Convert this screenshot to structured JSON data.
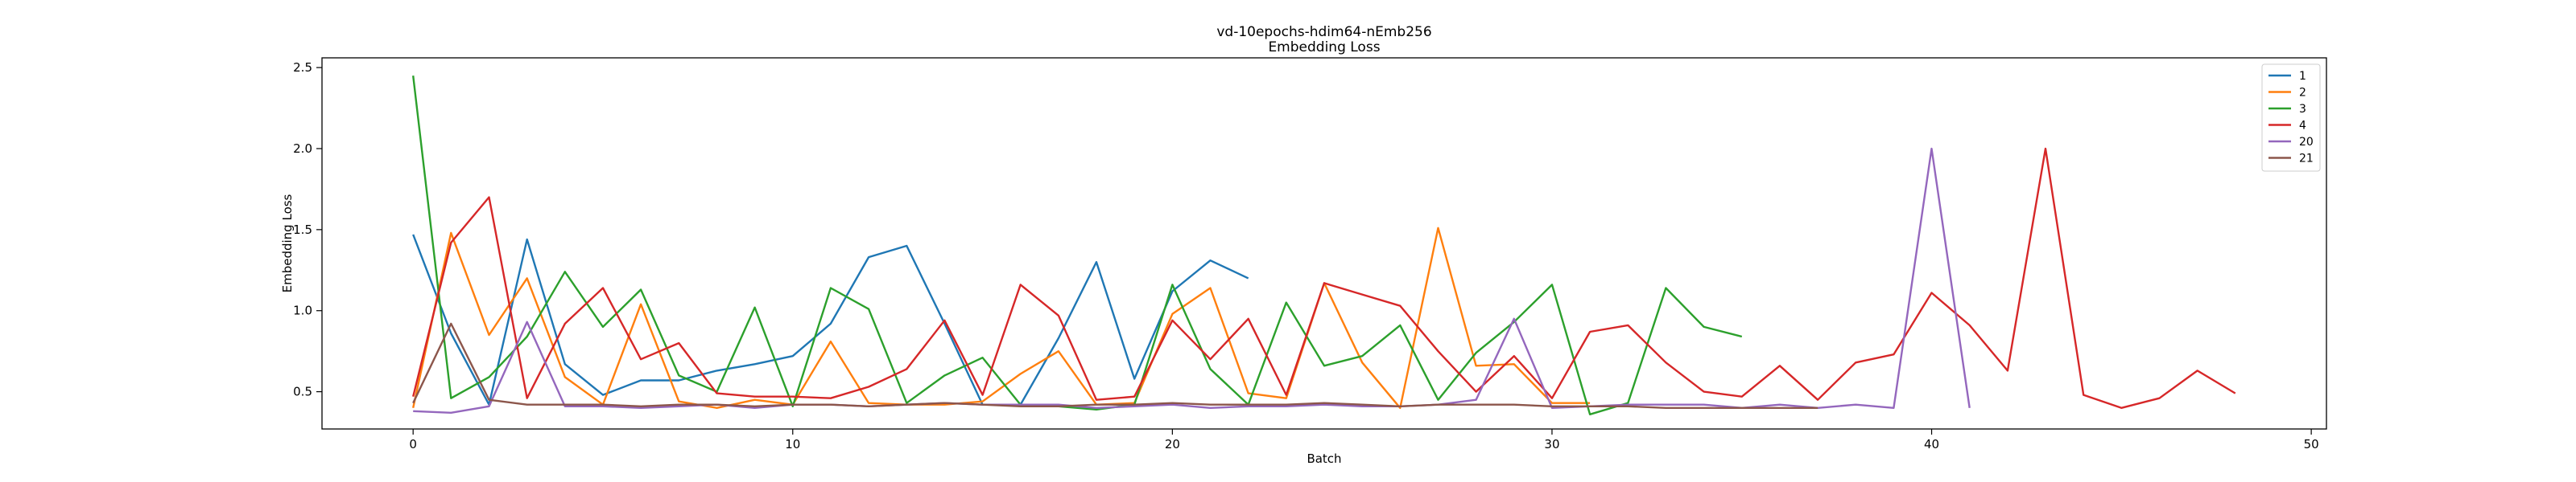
{
  "chart_data": {
    "type": "line",
    "title": "vd-10epochs-hdim64-nEmb256",
    "subtitle": "Embedding Loss",
    "xlabel": "Batch",
    "ylabel": "Embedding Loss",
    "xlim": [
      -2.4,
      50.4
    ],
    "ylim": [
      0.27,
      2.56
    ],
    "xticks": [
      0,
      10,
      20,
      30,
      40,
      50
    ],
    "yticks": [
      0.5,
      1.0,
      1.5,
      2.0,
      2.5
    ],
    "grid": false,
    "legend_position": "top-right",
    "series": [
      {
        "name": "1",
        "color": "#1f77b4",
        "x": [
          0,
          1,
          2,
          3,
          4,
          5,
          6,
          7,
          8,
          9,
          10,
          11,
          12,
          13,
          14,
          15,
          16,
          17,
          18,
          19,
          20,
          21,
          22
        ],
        "y": [
          1.47,
          0.86,
          0.42,
          1.44,
          0.67,
          0.48,
          0.57,
          0.57,
          0.63,
          0.67,
          0.72,
          0.92,
          1.33,
          1.4,
          0.92,
          0.42,
          0.42,
          0.83,
          1.3,
          0.58,
          1.12,
          1.31,
          1.2
        ]
      },
      {
        "name": "2",
        "color": "#ff7f0e",
        "x": [
          0,
          1,
          2,
          3,
          4,
          5,
          6,
          7,
          8,
          9,
          10,
          11,
          12,
          13,
          14,
          15,
          16,
          17,
          18,
          19,
          20,
          21,
          22,
          23,
          24,
          25,
          26,
          27,
          28,
          29,
          30,
          31
        ],
        "y": [
          0.4,
          1.48,
          0.85,
          1.2,
          0.59,
          0.42,
          1.04,
          0.44,
          0.4,
          0.45,
          0.42,
          0.81,
          0.43,
          0.42,
          0.42,
          0.44,
          0.61,
          0.75,
          0.42,
          0.43,
          0.98,
          1.14,
          0.49,
          0.46,
          1.17,
          0.68,
          0.4,
          1.51,
          0.66,
          0.67,
          0.43,
          0.43
        ]
      },
      {
        "name": "3",
        "color": "#2ca02c",
        "x": [
          0,
          1,
          2,
          3,
          4,
          5,
          6,
          7,
          8,
          9,
          10,
          11,
          12,
          13,
          14,
          15,
          16,
          17,
          18,
          19,
          20,
          21,
          22,
          23,
          24,
          25,
          26,
          27,
          28,
          29,
          30,
          31,
          32,
          33,
          34,
          35
        ],
        "y": [
          2.45,
          0.46,
          0.59,
          0.84,
          1.24,
          0.9,
          1.13,
          0.6,
          0.5,
          1.02,
          0.41,
          1.14,
          1.01,
          0.43,
          0.6,
          0.71,
          0.42,
          0.41,
          0.39,
          0.42,
          1.16,
          0.64,
          0.42,
          1.05,
          0.66,
          0.72,
          0.91,
          0.45,
          0.74,
          0.93,
          1.16,
          0.36,
          0.43,
          1.14,
          0.9,
          0.84
        ]
      },
      {
        "name": "4",
        "color": "#d62728",
        "x": [
          0,
          1,
          2,
          3,
          4,
          5,
          6,
          7,
          8,
          9,
          10,
          11,
          12,
          13,
          14,
          15,
          16,
          17,
          18,
          19,
          20,
          21,
          22,
          23,
          24,
          25,
          26,
          27,
          28,
          29,
          30,
          31,
          32,
          33,
          34,
          35,
          36,
          37,
          38,
          39,
          40,
          41,
          42,
          43,
          44,
          45,
          46,
          47,
          48
        ],
        "y": [
          0.47,
          1.42,
          1.7,
          0.46,
          0.92,
          1.14,
          0.7,
          0.8,
          0.49,
          0.47,
          0.47,
          0.46,
          0.53,
          0.64,
          0.94,
          0.48,
          1.16,
          0.97,
          0.45,
          0.47,
          0.94,
          0.7,
          0.95,
          0.48,
          1.17,
          1.1,
          1.03,
          0.75,
          0.5,
          0.72,
          0.46,
          0.87,
          0.91,
          0.68,
          0.5,
          0.47,
          0.66,
          0.45,
          0.68,
          0.73,
          1.11,
          0.91,
          0.63,
          2.0,
          0.48,
          0.4,
          0.46,
          0.63,
          0.49
        ]
      },
      {
        "name": "20",
        "color": "#9467bd",
        "x": [
          0,
          1,
          2,
          3,
          4,
          5,
          6,
          7,
          8,
          9,
          10,
          11,
          12,
          13,
          14,
          15,
          16,
          17,
          18,
          19,
          20,
          21,
          22,
          23,
          24,
          25,
          26,
          27,
          28,
          29,
          30,
          31,
          32,
          33,
          34,
          35,
          36,
          37,
          38,
          39,
          40,
          41
        ],
        "y": [
          0.38,
          0.37,
          0.41,
          0.93,
          0.41,
          0.41,
          0.4,
          0.41,
          0.42,
          0.4,
          0.42,
          0.42,
          0.41,
          0.42,
          0.43,
          0.42,
          0.42,
          0.42,
          0.4,
          0.41,
          0.42,
          0.4,
          0.41,
          0.41,
          0.42,
          0.41,
          0.41,
          0.42,
          0.45,
          0.95,
          0.4,
          0.41,
          0.42,
          0.42,
          0.42,
          0.4,
          0.42,
          0.4,
          0.42,
          0.4,
          2.0,
          0.4
        ]
      },
      {
        "name": "21",
        "color": "#8c564b",
        "x": [
          0,
          1,
          2,
          3,
          4,
          5,
          6,
          7,
          8,
          9,
          10,
          11,
          12,
          13,
          14,
          15,
          16,
          17,
          18,
          19,
          20,
          21,
          22,
          23,
          24,
          25,
          26,
          27,
          28,
          29,
          30,
          31,
          32,
          33,
          34,
          35,
          36,
          37
        ],
        "y": [
          0.43,
          0.92,
          0.45,
          0.42,
          0.42,
          0.42,
          0.41,
          0.42,
          0.42,
          0.41,
          0.42,
          0.42,
          0.41,
          0.42,
          0.43,
          0.42,
          0.41,
          0.41,
          0.42,
          0.42,
          0.43,
          0.42,
          0.42,
          0.42,
          0.43,
          0.42,
          0.41,
          0.42,
          0.42,
          0.42,
          0.41,
          0.41,
          0.41,
          0.4,
          0.4,
          0.4,
          0.4,
          0.4
        ]
      }
    ]
  }
}
